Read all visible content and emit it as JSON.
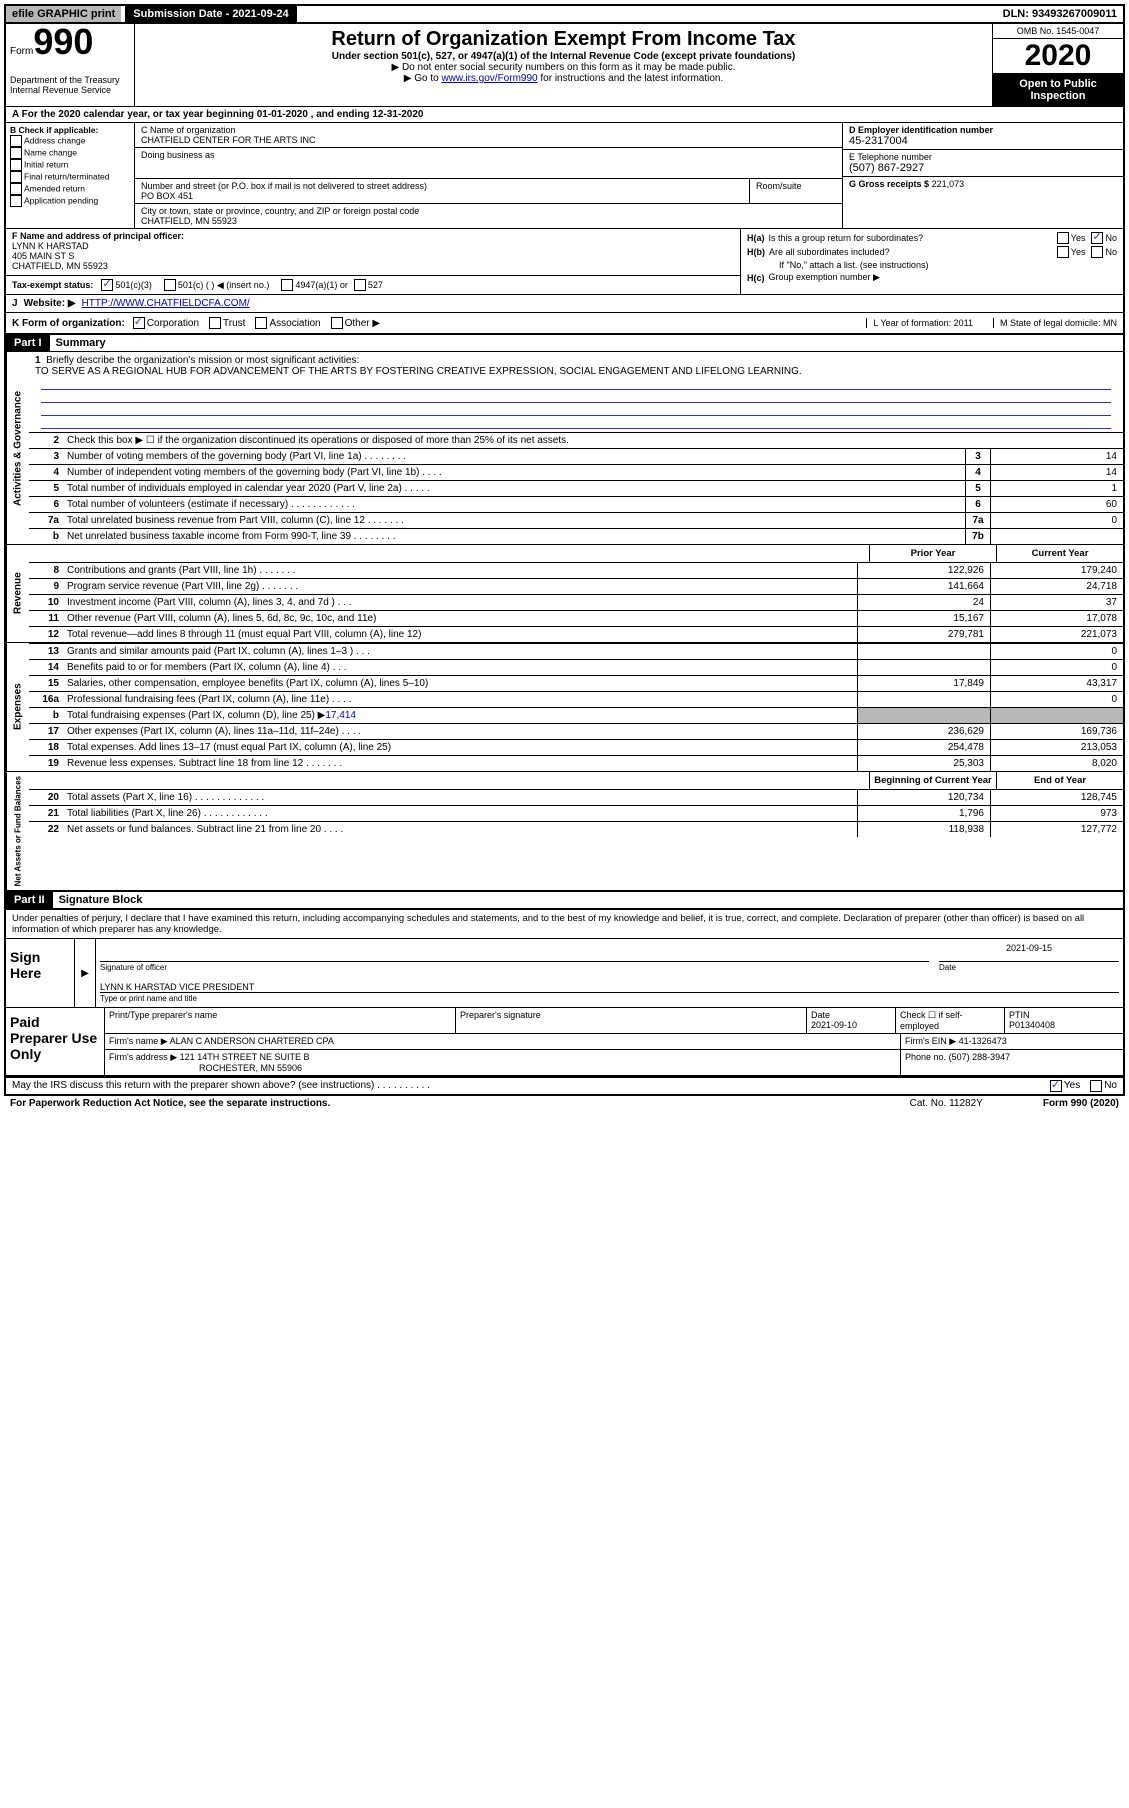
{
  "top_bar": {
    "efile": "efile GRAPHIC print",
    "submission": "Submission Date - 2021-09-24",
    "dln": "DLN: 93493267009011"
  },
  "header": {
    "form_word": "Form",
    "form_num": "990",
    "dept1": "Department of the Treasury",
    "dept2": "Internal Revenue Service",
    "title": "Return of Organization Exempt From Income Tax",
    "subtitle": "Under section 501(c), 527, or 4947(a)(1) of the Internal Revenue Code (except private foundations)",
    "inst1": "▶ Do not enter social security numbers on this form as it may be made public.",
    "inst2_pre": "▶ Go to ",
    "inst2_link": "www.irs.gov/Form990",
    "inst2_post": " for instructions and the latest information.",
    "omb": "OMB No. 1545-0047",
    "year": "2020",
    "open_public1": "Open to Public",
    "open_public2": "Inspection"
  },
  "period": "A For the 2020 calendar year, or tax year beginning 01-01-2020    , and ending 12-31-2020",
  "colB": {
    "title": "B Check if applicable:",
    "opts": [
      "Address change",
      "Name change",
      "Initial return",
      "Final return/terminated",
      "Amended return",
      "Application pending"
    ]
  },
  "colC": {
    "name_label": "C Name of organization",
    "name": "CHATFIELD CENTER FOR THE ARTS INC",
    "dba_label": "Doing business as",
    "addr_label": "Number and street (or P.O. box if mail is not delivered to street address)",
    "addr": "PO BOX 451",
    "suite_label": "Room/suite",
    "city_label": "City or town, state or province, country, and ZIP or foreign postal code",
    "city": "CHATFIELD, MN  55923"
  },
  "colD": {
    "label": "D Employer identification number",
    "value": "45-2317004"
  },
  "colE": {
    "label": "E Telephone number",
    "value": "(507) 867-2927"
  },
  "colG": {
    "label": "G Gross receipts $",
    "value": "221,073"
  },
  "colF": {
    "label": "F  Name and address of principal officer:",
    "name": "LYNN K HARSTAD",
    "addr1": "405 MAIN ST S",
    "addr2": "CHATFIELD, MN  55923"
  },
  "colH": {
    "a_label": "H(a)",
    "a_text": "Is this a group return for subordinates?",
    "b_label": "H(b)",
    "b_text": "Are all subordinates included?",
    "b_note": "If \"No,\" attach a list. (see instructions)",
    "c_label": "H(c)",
    "c_text": "Group exemption number ▶",
    "yes": "Yes",
    "no": "No"
  },
  "rowI": {
    "label": "Tax-exempt status:",
    "opts": [
      "501(c)(3)",
      "501(c) (   ) ◀ (insert no.)",
      "4947(a)(1) or",
      "527"
    ]
  },
  "rowJ": {
    "label": "J",
    "title": "Website: ▶",
    "url": "HTTP://WWW.CHATFIELDCFA.COM/"
  },
  "rowK": {
    "label": "K Form of organization:",
    "opts": [
      "Corporation",
      "Trust",
      "Association",
      "Other ▶"
    ],
    "L": "L Year of formation: 2011",
    "M": "M State of legal domicile: MN"
  },
  "part1": {
    "header": "Part I",
    "title": "Summary"
  },
  "mission": {
    "num": "1",
    "label": "Briefly describe the organization's mission or most significant activities:",
    "text": "TO SERVE AS A REGIONAL HUB FOR ADVANCEMENT OF THE ARTS BY FOSTERING CREATIVE EXPRESSION, SOCIAL ENGAGEMENT AND LIFELONG LEARNING."
  },
  "line2": {
    "num": "2",
    "text": "Check this box ▶ ☐  if the organization discontinued its operations or disposed of more than 25% of its net assets."
  },
  "governance_rows": [
    {
      "n": "3",
      "label": "Number of voting members of the governing body (Part VI, line 1a)   .    .    .    .    .    .    .    .",
      "box": "3",
      "val": "14"
    },
    {
      "n": "4",
      "label": "Number of independent voting members of the governing body (Part VI, line 1b)    .    .    .    .",
      "box": "4",
      "val": "14"
    },
    {
      "n": "5",
      "label": "Total number of individuals employed in calendar year 2020 (Part V, line 2a)    .    .    .    .    .",
      "box": "5",
      "val": "1"
    },
    {
      "n": "6",
      "label": "Total number of volunteers (estimate if necessary)    .    .    .    .    .    .    .    .    .    .    .    .",
      "box": "6",
      "val": "60"
    },
    {
      "n": "7a",
      "label": "Total unrelated business revenue from Part VIII, column (C), line 12    .    .    .    .    .    .    .",
      "box": "7a",
      "val": "0"
    },
    {
      "n": "b",
      "label": "Net unrelated business taxable income from Form 990-T, line 39    .    .    .    .    .    .    .    .",
      "box": "7b",
      "val": ""
    }
  ],
  "two_col_header": {
    "prior": "Prior Year",
    "current": "Current Year"
  },
  "revenue_rows": [
    {
      "n": "8",
      "label": "Contributions and grants (Part VIII, line 1h)    .    .    .    .    .    .    .",
      "v1": "122,926",
      "v2": "179,240"
    },
    {
      "n": "9",
      "label": "Program service revenue (Part VIII, line 2g)    .    .    .    .    .    .    .",
      "v1": "141,664",
      "v2": "24,718"
    },
    {
      "n": "10",
      "label": "Investment income (Part VIII, column (A), lines 3, 4, and 7d )    .    .    .",
      "v1": "24",
      "v2": "37"
    },
    {
      "n": "11",
      "label": "Other revenue (Part VIII, column (A), lines 5, 6d, 8c, 9c, 10c, and 11e)",
      "v1": "15,167",
      "v2": "17,078"
    },
    {
      "n": "12",
      "label": "Total revenue—add lines 8 through 11 (must equal Part VIII, column (A), line 12)",
      "v1": "279,781",
      "v2": "221,073"
    }
  ],
  "expenses_rows": [
    {
      "n": "13",
      "label": "Grants and similar amounts paid (Part IX, column (A), lines 1–3 )    .    .    .",
      "v1": "",
      "v2": "0"
    },
    {
      "n": "14",
      "label": "Benefits paid to or for members (Part IX, column (A), line 4)    .    .    .",
      "v1": "",
      "v2": "0"
    },
    {
      "n": "15",
      "label": "Salaries, other compensation, employee benefits (Part IX, column (A), lines 5–10)",
      "v1": "17,849",
      "v2": "43,317"
    },
    {
      "n": "16a",
      "label": "Professional fundraising fees (Part IX, column (A), line 11e)    .    .    .    .",
      "v1": "",
      "v2": "0"
    }
  ],
  "line16b": {
    "n": "b",
    "label_pre": "Total fundraising expenses (Part IX, column (D), line 25) ▶",
    "val": "17,414"
  },
  "expenses_rows2": [
    {
      "n": "17",
      "label": "Other expenses (Part IX, column (A), lines 11a–11d, 11f–24e)    .    .    .    .",
      "v1": "236,629",
      "v2": "169,736"
    },
    {
      "n": "18",
      "label": "Total expenses. Add lines 13–17 (must equal Part IX, column (A), line 25)",
      "v1": "254,478",
      "v2": "213,053"
    },
    {
      "n": "19",
      "label": "Revenue less expenses. Subtract line 18 from line 12  .    .    .    .    .    .    .",
      "v1": "25,303",
      "v2": "8,020"
    }
  ],
  "net_header": {
    "begin": "Beginning of Current Year",
    "end": "End of Year"
  },
  "net_rows": [
    {
      "n": "20",
      "label": "Total assets (Part X, line 16)  .    .    .    .    .    .    .    .    .    .    .    .    .",
      "v1": "120,734",
      "v2": "128,745"
    },
    {
      "n": "21",
      "label": "Total liabilities (Part X, line 26)  .    .    .    .    .    .    .    .    .    .    .    .",
      "v1": "1,796",
      "v2": "973"
    },
    {
      "n": "22",
      "label": "Net assets or fund balances. Subtract line 21 from line 20    .    .    .    .",
      "v1": "118,938",
      "v2": "127,772"
    }
  ],
  "part2": {
    "header": "Part II",
    "title": "Signature Block"
  },
  "sig_text": "Under penalties of perjury, I declare that I have examined this return, including accompanying schedules and statements, and to the best of my knowledge and belief, it is true, correct, and complete. Declaration of preparer (other than officer) is based on all information of which preparer has any knowledge.",
  "sign": {
    "label": "Sign Here",
    "sig_label": "Signature of officer",
    "date_label": "Date",
    "date": "2021-09-15",
    "name": "LYNN K HARSTAD  VICE PRESIDENT",
    "name_label": "Type or print name and title"
  },
  "preparer": {
    "label": "Paid Preparer Use Only",
    "h1": "Print/Type preparer's name",
    "h2": "Preparer's signature",
    "h3": "Date",
    "date": "2021-09-10",
    "h4_pre": "Check ☐ if self-employed",
    "h5": "PTIN",
    "ptin": "P01340408",
    "firm_label": "Firm's name    ▶",
    "firm_name": "ALAN C ANDERSON CHARTERED CPA",
    "ein_label": "Firm's EIN ▶",
    "ein": "41-1326473",
    "addr_label": "Firm's address ▶",
    "addr1": "121 14TH STREET NE SUITE B",
    "addr2": "ROCHESTER, MN  55906",
    "phone_label": "Phone no.",
    "phone": "(507) 288-3947"
  },
  "discuss": {
    "text": "May the IRS discuss this return with the preparer shown above? (see instructions)    .    .    .    .    .    .    .    .    .    .",
    "yes": "Yes",
    "no": "No"
  },
  "footer": {
    "left": "For Paperwork Reduction Act Notice, see the separate instructions.",
    "mid": "Cat. No. 11282Y",
    "right": "Form 990 (2020)"
  },
  "side_labels": {
    "gov": "Activities & Governance",
    "rev": "Revenue",
    "exp": "Expenses",
    "net": "Net Assets or Fund Balances"
  }
}
